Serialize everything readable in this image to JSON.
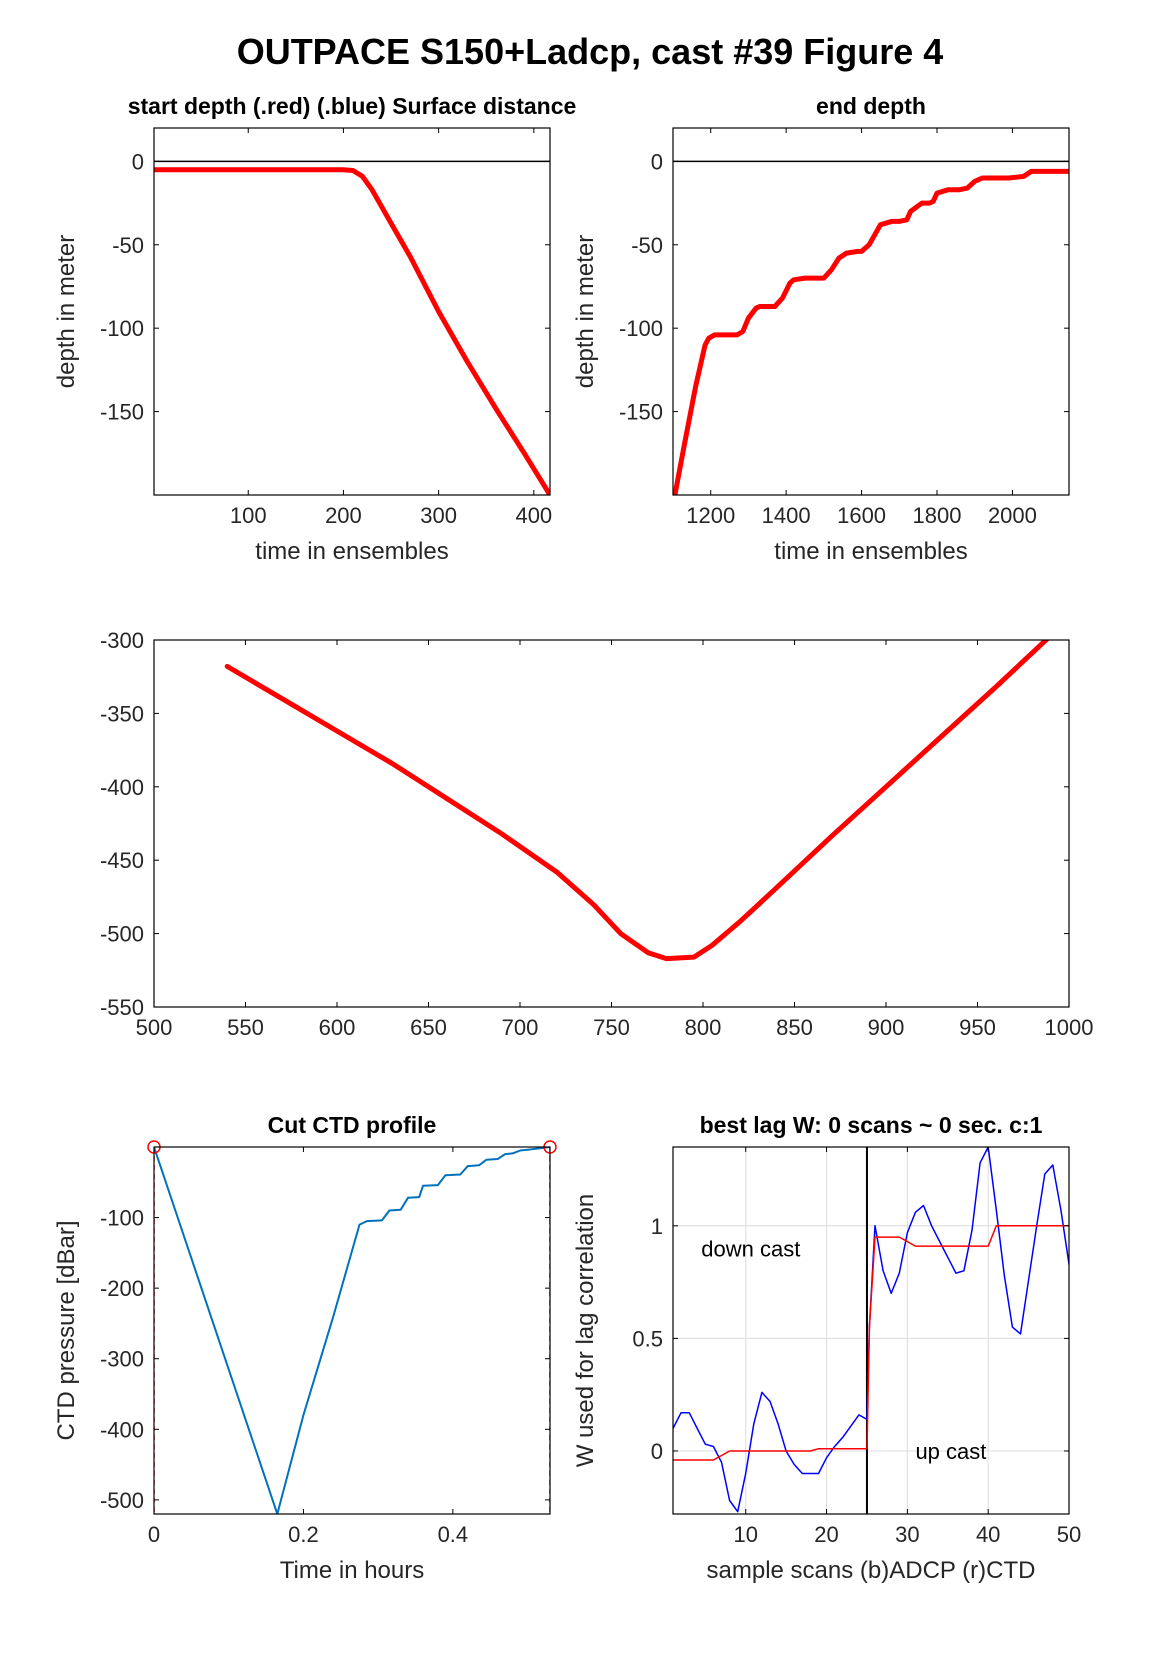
{
  "figure_title": "OUTPACE S150+Ladcp, cast #39   Figure 4",
  "colors": {
    "red": "#ff0000",
    "blue": "#0000ff",
    "ctd": "#0072bd",
    "grid": "#dcdcdc",
    "axis": "#000000"
  },
  "chart_data": [
    {
      "id": "start_depth",
      "type": "line",
      "title": "start depth (.red) (.blue) Surface distance",
      "xlabel": "time in ensembles",
      "ylabel": "depth in meter",
      "xlim": [
        1,
        417
      ],
      "ylim": [
        -200,
        20
      ],
      "xticks": [
        100,
        200,
        300,
        400
      ],
      "yticks": [
        0,
        -50,
        -100,
        -150
      ],
      "grid": false,
      "reference_line": {
        "y": 0,
        "color": "#000000"
      },
      "series": [
        {
          "color": "#ff0000",
          "width": 5,
          "x": [
            1,
            100,
            200,
            210,
            220,
            230,
            250,
            270,
            300,
            330,
            360,
            390,
            417
          ],
          "y": [
            -5,
            -5,
            -5,
            -5.5,
            -9,
            -17,
            -37,
            -57,
            -90,
            -120,
            -148,
            -175,
            -200
          ]
        }
      ]
    },
    {
      "id": "end_depth",
      "type": "line",
      "title": "end depth",
      "xlabel": "time in ensembles",
      "ylabel": "depth in meter",
      "xlim": [
        1100,
        2150
      ],
      "ylim": [
        -200,
        20
      ],
      "xticks": [
        1200,
        1400,
        1600,
        1800,
        2000
      ],
      "yticks": [
        0,
        -50,
        -100,
        -150
      ],
      "grid": false,
      "reference_line": {
        "y": 0,
        "color": "#000000"
      },
      "series": [
        {
          "color": "#ff0000",
          "width": 5,
          "x": [
            1105,
            1130,
            1160,
            1185,
            1195,
            1210,
            1250,
            1270,
            1285,
            1300,
            1320,
            1330,
            1350,
            1370,
            1390,
            1410,
            1420,
            1450,
            1480,
            1500,
            1520,
            1540,
            1560,
            1590,
            1600,
            1620,
            1650,
            1680,
            1700,
            1720,
            1730,
            1760,
            1780,
            1790,
            1800,
            1830,
            1860,
            1880,
            1900,
            1920,
            1950,
            1990,
            2030,
            2050,
            2070,
            2100,
            2150
          ],
          "y": [
            -200,
            -170,
            -135,
            -110,
            -106,
            -104,
            -104,
            -104,
            -102,
            -94,
            -88,
            -87,
            -87,
            -87,
            -82,
            -73,
            -71,
            -70,
            -70,
            -70,
            -65,
            -58,
            -55,
            -54,
            -54,
            -50,
            -38,
            -36,
            -36,
            -35,
            -30,
            -25,
            -25,
            -24,
            -19,
            -17,
            -17,
            -16,
            -12,
            -10,
            -10,
            -10,
            -9,
            -6,
            -6,
            -6,
            -6
          ]
        }
      ]
    },
    {
      "id": "middle",
      "type": "line",
      "title": "",
      "xlabel": "",
      "ylabel": "",
      "xlim": [
        500,
        1000
      ],
      "ylim": [
        -550,
        -300
      ],
      "xticks": [
        500,
        550,
        600,
        650,
        700,
        750,
        800,
        850,
        900,
        950,
        1000
      ],
      "yticks": [
        -300,
        -350,
        -400,
        -450,
        -500,
        -550
      ],
      "grid": false,
      "series": [
        {
          "color": "#ff0000",
          "width": 5,
          "x": [
            540,
            570,
            600,
            630,
            660,
            690,
            720,
            740,
            755,
            770,
            780,
            795,
            805,
            820,
            840,
            870,
            900,
            930,
            960,
            990
          ],
          "y": [
            -318,
            -340,
            -362,
            -384,
            -408,
            -432,
            -458,
            -480,
            -500,
            -513,
            -517,
            -516,
            -508,
            -492,
            -469,
            -434,
            -400,
            -366,
            -332,
            -297
          ]
        }
      ]
    },
    {
      "id": "cut_ctd",
      "type": "line",
      "title": "Cut CTD profile",
      "xlabel": "Time in hours",
      "ylabel": "CTD pressure [dBar]",
      "xlim": [
        0,
        0.53
      ],
      "ylim": [
        -520,
        0
      ],
      "xticks": [
        0,
        0.2,
        0.4
      ],
      "yticks": [
        -100,
        -200,
        -300,
        -400,
        -500
      ],
      "grid": false,
      "series": [
        {
          "color": "#0072bd",
          "width": 2,
          "x": [
            0,
            0.165,
            0.2,
            0.24,
            0.275,
            0.285,
            0.305,
            0.315,
            0.33,
            0.34,
            0.355,
            0.36,
            0.38,
            0.39,
            0.41,
            0.42,
            0.435,
            0.445,
            0.46,
            0.47,
            0.48,
            0.49,
            0.5,
            0.53
          ],
          "y": [
            0,
            -520,
            -380,
            -240,
            -110,
            -105,
            -104,
            -90,
            -89,
            -72,
            -71,
            -55,
            -54,
            -40,
            -39,
            -27,
            -26,
            -18,
            -17,
            -10,
            -9,
            -5,
            -4,
            0
          ]
        }
      ],
      "markers": {
        "color": "#ff0000",
        "x": [
          0,
          0.53
        ],
        "y": [
          0,
          0
        ]
      },
      "vlines": {
        "color": "#ff0000",
        "x": [
          0,
          0.53
        ]
      }
    },
    {
      "id": "best_lag",
      "type": "line",
      "title": "best lag W: 0 scans ~ 0 sec.  c:1",
      "xlabel": "sample scans (b)ADCP (r)CTD",
      "ylabel": "W used for lag correlation",
      "xlim": [
        1,
        50
      ],
      "ylim": [
        -0.28,
        1.35
      ],
      "xticks": [
        10,
        20,
        30,
        40,
        50
      ],
      "yticks": [
        0,
        0.5,
        1
      ],
      "grid": true,
      "vline": {
        "x": 25,
        "color": "#000000"
      },
      "series": [
        {
          "name": "(b)ADCP",
          "color": "#0000ff",
          "width": 1.5,
          "x": [
            1,
            2,
            3,
            4,
            5,
            6,
            7,
            8,
            9,
            10,
            11,
            12,
            13,
            14,
            15,
            16,
            17,
            18,
            19,
            20,
            21,
            22,
            23,
            24,
            25,
            25.3,
            26,
            27,
            28,
            29,
            30,
            31,
            32,
            33,
            34,
            35,
            36,
            37,
            38,
            39,
            40,
            41,
            42,
            43,
            44,
            45,
            46,
            47,
            48,
            49,
            50
          ],
          "y": [
            0.1,
            0.17,
            0.17,
            0.1,
            0.03,
            0.02,
            -0.05,
            -0.22,
            -0.27,
            -0.1,
            0.12,
            0.26,
            0.22,
            0.12,
            0.0,
            -0.06,
            -0.1,
            -0.1,
            -0.1,
            -0.03,
            0.02,
            0.06,
            0.11,
            0.16,
            0.14,
            0.55,
            1.0,
            0.8,
            0.7,
            0.79,
            0.97,
            1.06,
            1.09,
            1.0,
            0.93,
            0.86,
            0.79,
            0.8,
            0.98,
            1.28,
            1.35,
            1.07,
            0.78,
            0.55,
            0.52,
            0.76,
            1.0,
            1.23,
            1.27,
            1.07,
            0.83
          ]
        },
        {
          "name": "(r)CTD",
          "color": "#ff0000",
          "width": 1.5,
          "x": [
            1,
            5,
            6,
            7,
            8,
            18,
            19,
            25,
            25.3,
            26,
            29,
            30,
            31,
            40,
            41,
            50
          ],
          "y": [
            -0.04,
            -0.04,
            -0.04,
            -0.02,
            0.0,
            0.0,
            0.01,
            0.01,
            0.55,
            0.95,
            0.95,
            0.93,
            0.91,
            0.91,
            1.0,
            1.0
          ]
        }
      ],
      "annotations": [
        {
          "text": "down cast",
          "x": 4.5,
          "y": 0.9
        },
        {
          "text": "up cast",
          "x": 31,
          "y": 0.0
        }
      ]
    }
  ]
}
